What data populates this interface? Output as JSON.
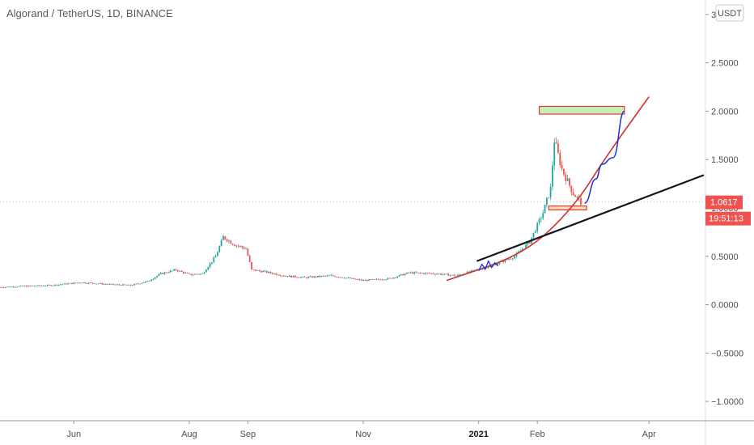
{
  "header": {
    "title": "Algorand / TetherUS, 1D, BINANCE",
    "currency_button": "USDT"
  },
  "price_badge": {
    "price": "1.0617",
    "countdown": "19:51:13"
  },
  "colors": {
    "up": "#26a69a",
    "down": "#ef5350",
    "trend_line": "#131722",
    "curve": "#d32f2f",
    "path": "#1c2fd9",
    "target_fill": "#c8f0b4",
    "target_border": "#e53935",
    "badge": "#ef5350"
  },
  "chart_data": {
    "type": "candlestick",
    "title": "Algorand / TetherUS, 1D, BINANCE",
    "ylim": [
      -1.2,
      3.15
    ],
    "y_ticks": [
      "3.0000",
      "2.5000",
      "2.0000",
      "1.5000",
      "1.0000",
      "0.5000",
      "0.0000",
      "−0.5000",
      "−1.0000"
    ],
    "y_tick_values": [
      3.0,
      2.5,
      2.0,
      1.5,
      1.0,
      0.5,
      0.0,
      -0.5,
      -1.0
    ],
    "x_ticks": [
      {
        "label": "Jun",
        "date": "2020-06-01",
        "bold": false
      },
      {
        "label": "Aug",
        "date": "2020-08-01",
        "bold": false
      },
      {
        "label": "Sep",
        "date": "2020-09-01",
        "bold": false
      },
      {
        "label": "Nov",
        "date": "2020-11-01",
        "bold": false
      },
      {
        "label": "2021",
        "date": "2021-01-01",
        "bold": true
      },
      {
        "label": "Feb",
        "date": "2021-02-01",
        "bold": false
      },
      {
        "label": "Apr",
        "date": "2021-04-01",
        "bold": false
      }
    ],
    "xlim": [
      "2020-04-23",
      "2021-04-30"
    ],
    "last_price": 1.0617,
    "close_series": [
      [
        "2020-04-23",
        0.18
      ],
      [
        "2020-05-05",
        0.19
      ],
      [
        "2020-05-20",
        0.2
      ],
      [
        "2020-06-05",
        0.23
      ],
      [
        "2020-06-20",
        0.21
      ],
      [
        "2020-07-01",
        0.2
      ],
      [
        "2020-07-10",
        0.24
      ],
      [
        "2020-07-17",
        0.32
      ],
      [
        "2020-07-25",
        0.36
      ],
      [
        "2020-08-01",
        0.31
      ],
      [
        "2020-08-08",
        0.32
      ],
      [
        "2020-08-15",
        0.5
      ],
      [
        "2020-08-19",
        0.7
      ],
      [
        "2020-08-25",
        0.62
      ],
      [
        "2020-08-31",
        0.58
      ],
      [
        "2020-09-03",
        0.36
      ],
      [
        "2020-09-10",
        0.34
      ],
      [
        "2020-09-20",
        0.3
      ],
      [
        "2020-10-01",
        0.28
      ],
      [
        "2020-10-15",
        0.3
      ],
      [
        "2020-11-01",
        0.25
      ],
      [
        "2020-11-15",
        0.27
      ],
      [
        "2020-11-25",
        0.33
      ],
      [
        "2020-12-10",
        0.32
      ],
      [
        "2020-12-20",
        0.3
      ],
      [
        "2020-12-31",
        0.36
      ],
      [
        "2021-01-10",
        0.42
      ],
      [
        "2021-01-20",
        0.5
      ],
      [
        "2021-01-28",
        0.65
      ],
      [
        "2021-02-04",
        0.95
      ],
      [
        "2021-02-08",
        1.2
      ],
      [
        "2021-02-10",
        1.7
      ],
      [
        "2021-02-14",
        1.4
      ],
      [
        "2021-02-20",
        1.15
      ],
      [
        "2021-02-24",
        1.06
      ]
    ],
    "annotations": {
      "trend_line": [
        [
          "2020-12-31",
          0.45
        ],
        [
          "2021-04-30",
          1.34
        ]
      ],
      "parabolic_curve": [
        [
          "2020-12-15",
          0.25
        ],
        [
          "2021-01-25",
          0.52
        ],
        [
          "2021-02-20",
          1.0
        ],
        [
          "2021-03-10",
          1.55
        ],
        [
          "2021-04-01",
          2.15
        ]
      ],
      "projected_path": [
        [
          "2021-02-26",
          1.05
        ],
        [
          "2021-03-04",
          1.3
        ],
        [
          "2021-03-07",
          1.45
        ],
        [
          "2021-03-13",
          1.52
        ],
        [
          "2021-03-19",
          2.0
        ]
      ],
      "target_zone": {
        "from": "2021-02-02",
        "to": "2021-03-19",
        "low": 1.97,
        "high": 2.05
      },
      "support_zone": {
        "from": "2021-02-07",
        "to": "2021-02-27",
        "low": 0.98,
        "high": 1.02
      }
    }
  }
}
